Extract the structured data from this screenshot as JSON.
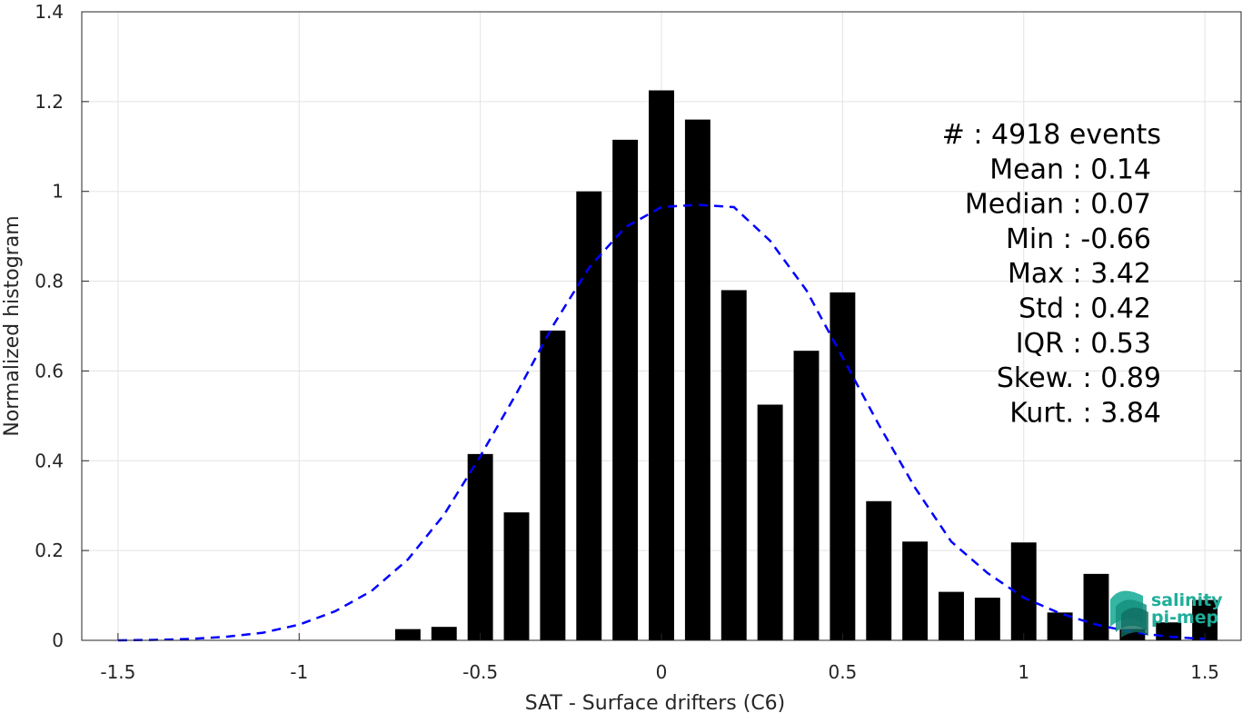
{
  "chart_data": {
    "type": "bar",
    "xlabel": "SAT - Surface drifters (C6)",
    "ylabel": "Normalized histogram",
    "xlim": [
      -1.6,
      1.6
    ],
    "ylim": [
      0,
      1.4
    ],
    "xticks": [
      -1.5,
      -1,
      -0.5,
      0,
      0.5,
      1,
      1.5
    ],
    "xtick_labels": [
      "-1.5",
      "-1",
      "-0.5",
      "0",
      "0.5",
      "1",
      "1.5"
    ],
    "yticks": [
      0,
      0.2,
      0.4,
      0.6,
      0.8,
      1,
      1.2,
      1.4
    ],
    "ytick_labels": [
      "0",
      "0.2",
      "0.4",
      "0.6",
      "0.8",
      "1",
      "1.2",
      "1.4"
    ],
    "grid": true,
    "bar_color": "#000000",
    "curve_color": "#0000ff",
    "bar_width": 0.07,
    "bars": {
      "x": [
        -0.7,
        -0.6,
        -0.5,
        -0.4,
        -0.3,
        -0.2,
        -0.1,
        0.0,
        0.1,
        0.2,
        0.3,
        0.4,
        0.5,
        0.6,
        0.7,
        0.8,
        0.9,
        1.0,
        1.1,
        1.2,
        1.3,
        1.4,
        1.5
      ],
      "values": [
        0.025,
        0.03,
        0.415,
        0.285,
        0.69,
        1.0,
        1.115,
        1.225,
        1.16,
        0.78,
        0.525,
        0.645,
        0.775,
        0.31,
        0.22,
        0.108,
        0.095,
        0.218,
        0.062,
        0.148,
        0.025,
        0.04,
        0.09
      ]
    },
    "curve": {
      "style": "dashed",
      "x": [
        -1.5,
        -1.4,
        -1.3,
        -1.2,
        -1.1,
        -1.0,
        -0.9,
        -0.8,
        -0.7,
        -0.6,
        -0.5,
        -0.4,
        -0.3,
        -0.2,
        -0.1,
        0.0,
        0.1,
        0.2,
        0.3,
        0.4,
        0.5,
        0.6,
        0.7,
        0.8,
        0.9,
        1.0,
        1.1,
        1.2,
        1.3,
        1.4,
        1.5
      ],
      "y": [
        0.0,
        0.001,
        0.003,
        0.008,
        0.017,
        0.035,
        0.065,
        0.11,
        0.18,
        0.28,
        0.41,
        0.55,
        0.7,
        0.83,
        0.92,
        0.965,
        0.97,
        0.965,
        0.89,
        0.78,
        0.63,
        0.48,
        0.34,
        0.22,
        0.15,
        0.095,
        0.06,
        0.035,
        0.018,
        0.008,
        0.003
      ]
    },
    "stats": [
      {
        "label": "#  : 4918 events"
      },
      {
        "label": "Mean : 0.14"
      },
      {
        "label": "Median : 0.07"
      },
      {
        "label": "Min : -0.66"
      },
      {
        "label": "Max : 3.42"
      },
      {
        "label": "Std : 0.42"
      },
      {
        "label": "IQR : 0.53"
      },
      {
        "label": "Skew. : 0.89"
      },
      {
        "label": "Kurt. : 3.84"
      }
    ]
  },
  "logo": {
    "line1": "salinity",
    "line2": "pi-mep",
    "color": "#1fae9a"
  }
}
